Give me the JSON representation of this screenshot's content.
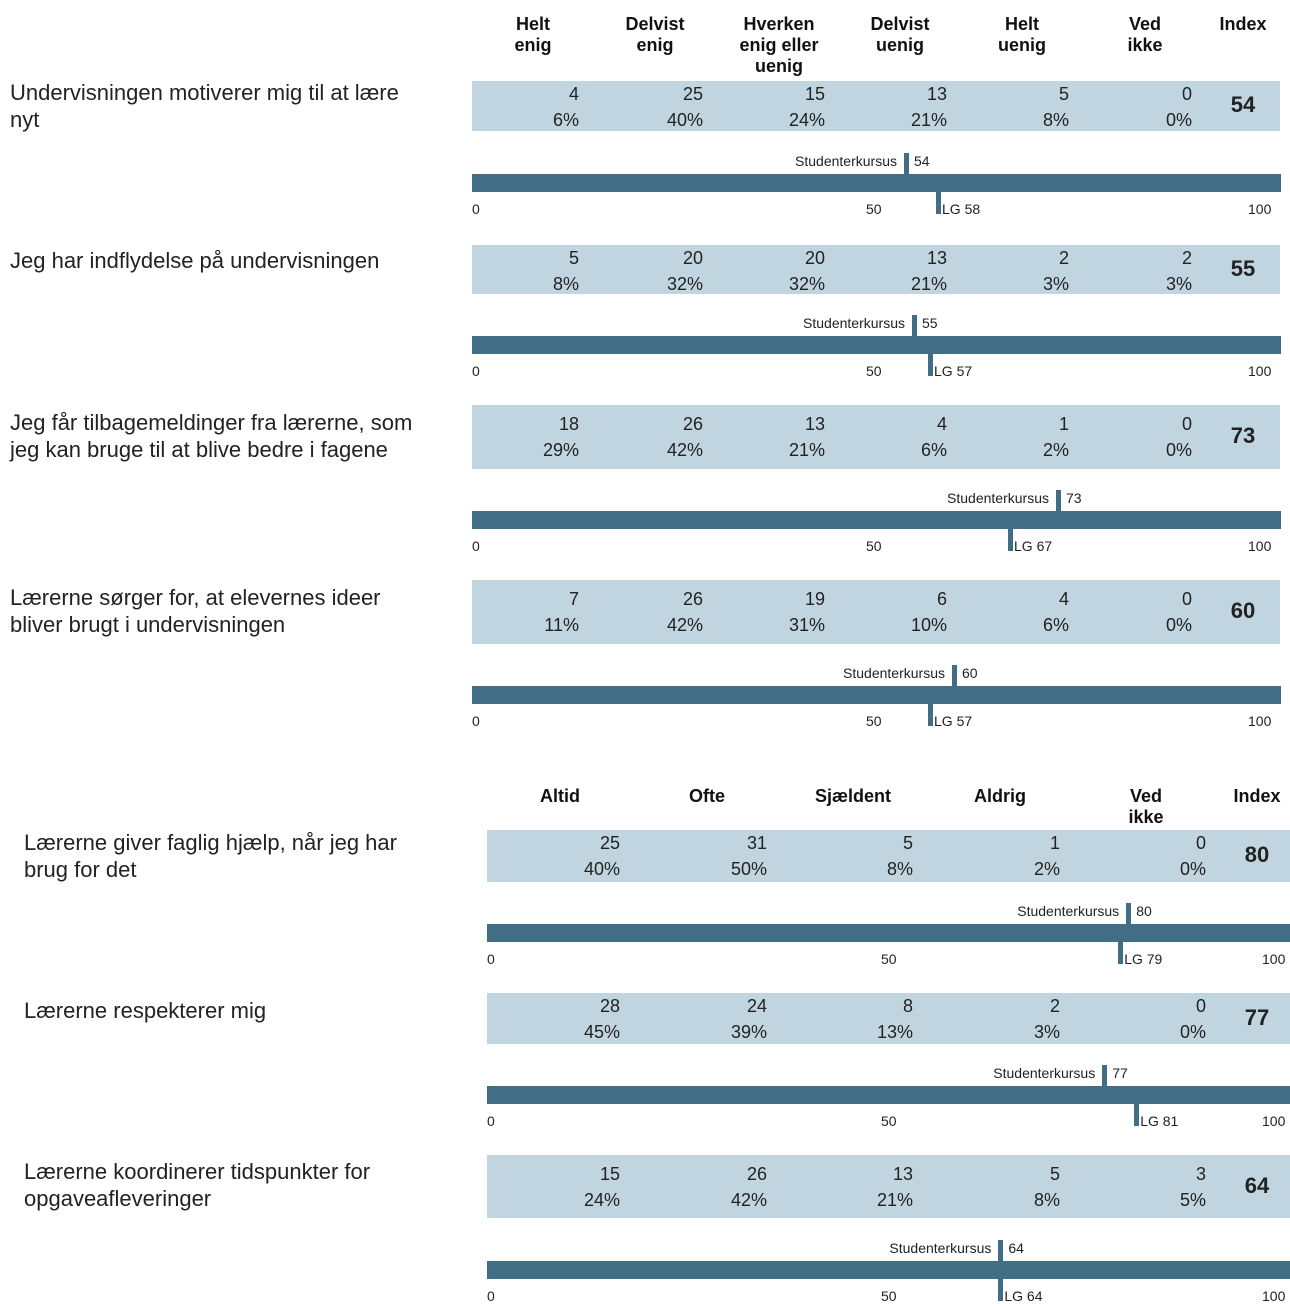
{
  "chart_data": [
    {
      "type": "table",
      "columns": [
        "Helt enig",
        "Delvist enig",
        "Hverken enig eller uenig",
        "Delvist uenig",
        "Helt uenig",
        "Ved ikke",
        "Index"
      ],
      "column_lines": [
        [
          "Helt",
          "enig"
        ],
        [
          "Delvist",
          "enig"
        ],
        [
          "Hverken",
          "enig eller",
          "uenig"
        ],
        [
          "Delvist",
          "uenig"
        ],
        [
          "Helt",
          "uenig"
        ],
        [
          "Ved",
          "ikke"
        ],
        [
          "Index"
        ]
      ],
      "scale": {
        "min": "0",
        "mid": "50",
        "max": "100"
      },
      "series_label": "Studenterkursus",
      "reference_prefix": "LG",
      "questions": [
        {
          "lines": [
            "Undervisningen motiverer mig til at lære",
            "nyt"
          ],
          "counts": [
            "4",
            "25",
            "15",
            "13",
            "5",
            "0"
          ],
          "percents": [
            "6%",
            "40%",
            "24%",
            "21%",
            "8%",
            "0%"
          ],
          "index": "54",
          "studenterkursus": "54",
          "lg": "LG 58",
          "studenterkursus_value": 54,
          "lg_value": 58
        },
        {
          "lines": [
            "Jeg har indflydelse på undervisningen"
          ],
          "counts": [
            "5",
            "20",
            "20",
            "13",
            "2",
            "2"
          ],
          "percents": [
            "8%",
            "32%",
            "32%",
            "21%",
            "3%",
            "3%"
          ],
          "index": "55",
          "studenterkursus": "55",
          "lg": "LG 57",
          "studenterkursus_value": 55,
          "lg_value": 57
        },
        {
          "lines": [
            "Jeg får tilbagemeldinger fra lærerne, som",
            "jeg kan bruge til at blive bedre i fagene"
          ],
          "counts": [
            "18",
            "26",
            "13",
            "4",
            "1",
            "0"
          ],
          "percents": [
            "29%",
            "42%",
            "21%",
            "6%",
            "2%",
            "0%"
          ],
          "index": "73",
          "studenterkursus": "73",
          "lg": "LG 67",
          "studenterkursus_value": 73,
          "lg_value": 67
        },
        {
          "lines": [
            "Lærerne sørger for, at elevernes ideer",
            "bliver brugt i undervisningen"
          ],
          "counts": [
            "7",
            "26",
            "19",
            "6",
            "4",
            "0"
          ],
          "percents": [
            "11%",
            "42%",
            "31%",
            "10%",
            "6%",
            "0%"
          ],
          "index": "60",
          "studenterkursus": "60",
          "lg": "LG 57",
          "studenterkursus_value": 60,
          "lg_value": 57
        }
      ]
    },
    {
      "type": "table",
      "columns": [
        "Altid",
        "Ofte",
        "Sjældent",
        "Aldrig",
        "Ved ikke",
        "Index"
      ],
      "column_lines": [
        [
          "Altid"
        ],
        [
          "Ofte"
        ],
        [
          "Sjældent"
        ],
        [
          "Aldrig"
        ],
        [
          "Ved",
          "ikke"
        ],
        [
          "Index"
        ]
      ],
      "scale": {
        "min": "0",
        "mid": "50",
        "max": "100"
      },
      "series_label": "Studenterkursus",
      "reference_prefix": "LG",
      "questions": [
        {
          "lines": [
            "Lærerne giver faglig hjælp, når jeg har",
            "brug for det"
          ],
          "counts": [
            "25",
            "31",
            "5",
            "1",
            "0"
          ],
          "percents": [
            "40%",
            "50%",
            "8%",
            "2%",
            "0%"
          ],
          "index": "80",
          "studenterkursus": "80",
          "lg": "LG 79",
          "studenterkursus_value": 80,
          "lg_value": 79
        },
        {
          "lines": [
            "Lærerne respekterer mig"
          ],
          "counts": [
            "28",
            "24",
            "8",
            "2",
            "0"
          ],
          "percents": [
            "45%",
            "39%",
            "13%",
            "3%",
            "0%"
          ],
          "index": "77",
          "studenterkursus": "77",
          "lg": "LG 81",
          "studenterkursus_value": 77,
          "lg_value": 81
        },
        {
          "lines": [
            "Lærerne koordinerer tidspunkter for",
            "opgaveafleveringer"
          ],
          "counts": [
            "15",
            "26",
            "13",
            "5",
            "3"
          ],
          "percents": [
            "24%",
            "42%",
            "21%",
            "8%",
            "5%"
          ],
          "index": "64",
          "studenterkursus": "64",
          "lg": "LG 64",
          "studenterkursus_value": 64,
          "lg_value": 64
        }
      ]
    }
  ],
  "colors": {
    "band": "#c0d5e0",
    "bar": "#426e85"
  }
}
